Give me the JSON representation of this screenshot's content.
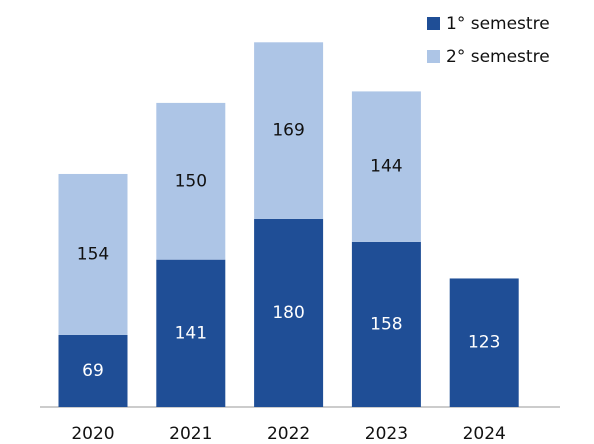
{
  "chart_data": {
    "type": "stacked-bar",
    "categories": [
      "2020",
      "2021",
      "2022",
      "2023",
      "2024"
    ],
    "series": [
      {
        "name": "1° semestre",
        "color": "#1f4e96",
        "values": [
          69,
          141,
          180,
          158,
          123
        ]
      },
      {
        "name": "2° semestre",
        "color": "#adc5e6",
        "values": [
          154,
          150,
          169,
          144,
          null
        ]
      }
    ]
  }
}
